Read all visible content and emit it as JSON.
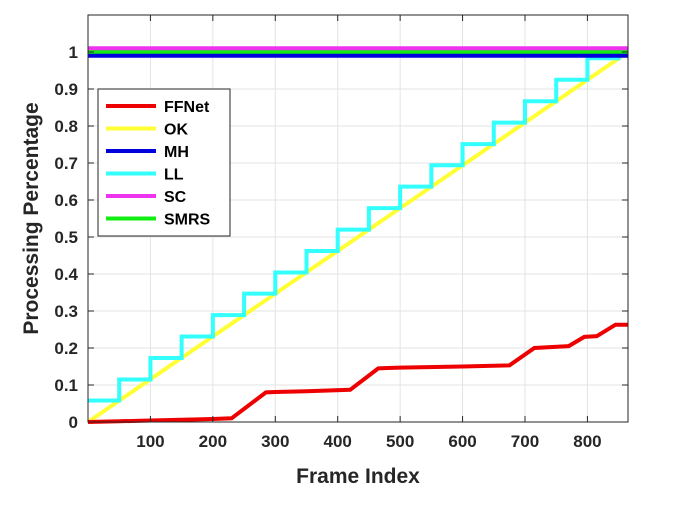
{
  "chart_data": {
    "type": "line",
    "xlabel": "Frame Index",
    "ylabel": "Processing Percentage",
    "xlim": [
      0,
      865
    ],
    "ylim": [
      0,
      1.1
    ],
    "xticks": [
      100,
      200,
      300,
      400,
      500,
      600,
      700,
      800
    ],
    "yticks": [
      0,
      0.1,
      0.2,
      0.3,
      0.4,
      0.5,
      0.6,
      0.7,
      0.8,
      0.9,
      1
    ],
    "grid": true,
    "legend_position": "top-left",
    "series": [
      {
        "name": "FFNet",
        "color": "#ee0000",
        "x": [
          0,
          50,
          100,
          150,
          200,
          230,
          285,
          300,
          350,
          420,
          465,
          480,
          500,
          600,
          675,
          715,
          770,
          795,
          815,
          845,
          865
        ],
        "y": [
          0,
          0.002,
          0.004,
          0.006,
          0.008,
          0.01,
          0.08,
          0.081,
          0.083,
          0.087,
          0.145,
          0.146,
          0.147,
          0.15,
          0.153,
          0.2,
          0.205,
          0.23,
          0.232,
          0.263,
          0.263
        ]
      },
      {
        "name": "OK",
        "color": "#ffff33",
        "x": [
          0,
          865
        ],
        "y": [
          0,
          1.0
        ]
      },
      {
        "name": "MH",
        "color": "#0000dd",
        "x": [
          0,
          865
        ],
        "y": [
          0.99,
          0.99
        ]
      },
      {
        "name": "LL",
        "color": "#33ffff",
        "step": true,
        "x": [
          0,
          50,
          100,
          150,
          200,
          250,
          300,
          350,
          400,
          450,
          500,
          550,
          600,
          650,
          700,
          750,
          800,
          850,
          865
        ],
        "y": [
          0.058,
          0.115,
          0.173,
          0.231,
          0.289,
          0.347,
          0.404,
          0.462,
          0.52,
          0.578,
          0.636,
          0.694,
          0.751,
          0.809,
          0.867,
          0.925,
          0.983,
          1.0,
          1.0
        ]
      },
      {
        "name": "SC",
        "color": "#ee33ee",
        "x": [
          0,
          865
        ],
        "y": [
          1.01,
          1.01
        ]
      },
      {
        "name": "SMRS",
        "color": "#11ee11",
        "x": [
          0,
          865
        ],
        "y": [
          1.0,
          1.0
        ]
      }
    ],
    "draw_order": [
      "OK",
      "LL",
      "FFNet",
      "SMRS",
      "MH",
      "SC"
    ]
  }
}
